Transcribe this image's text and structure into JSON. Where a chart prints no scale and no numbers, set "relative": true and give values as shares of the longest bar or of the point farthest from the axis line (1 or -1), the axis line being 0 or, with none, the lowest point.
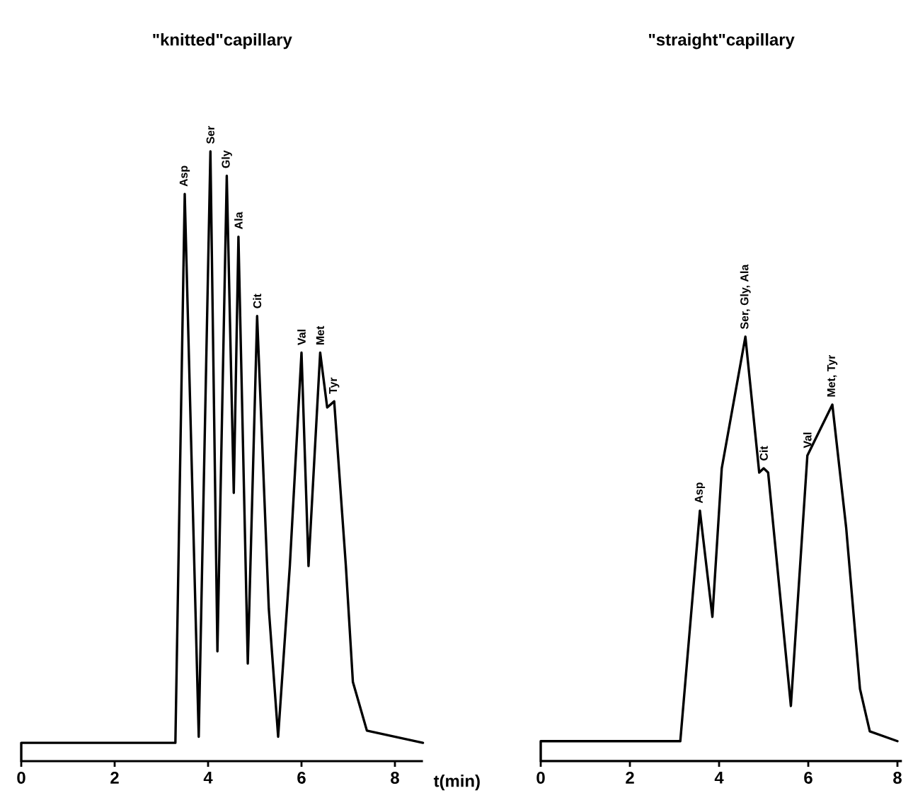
{
  "chart_data": [
    {
      "type": "line",
      "title": "\"knitted\"capillary",
      "xlabel": "t(min)",
      "relative": true,
      "color": "#000000",
      "xlim": [
        0,
        8.6
      ],
      "xticks": [
        0,
        2,
        4,
        6,
        8
      ],
      "x": [
        0,
        0,
        3.3,
        3.5,
        3.8,
        4.05,
        4.2,
        4.4,
        4.55,
        4.65,
        4.85,
        5.05,
        5.3,
        5.5,
        5.75,
        6.0,
        6.15,
        6.4,
        6.55,
        6.7,
        6.95,
        7.1,
        7.4,
        8.6
      ],
      "values": [
        0,
        0.03,
        0.03,
        0.93,
        0.04,
        1.0,
        0.18,
        0.96,
        0.44,
        0.86,
        0.16,
        0.73,
        0.25,
        0.04,
        0.32,
        0.67,
        0.32,
        0.67,
        0.58,
        0.59,
        0.32,
        0.13,
        0.05,
        0.03
      ],
      "annotations": [
        {
          "text": "Asp",
          "x": 3.5,
          "y": 0.93
        },
        {
          "text": "Ser",
          "x": 4.05,
          "y": 1.0
        },
        {
          "text": "Gly",
          "x": 4.4,
          "y": 0.96
        },
        {
          "text": "Ala",
          "x": 4.65,
          "y": 0.86
        },
        {
          "text": "Cit",
          "x": 5.05,
          "y": 0.73
        },
        {
          "text": "Val",
          "x": 6.0,
          "y": 0.67
        },
        {
          "text": "Met",
          "x": 6.4,
          "y": 0.67
        },
        {
          "text": "Tyr",
          "x": 6.7,
          "y": 0.59
        }
      ]
    },
    {
      "type": "line",
      "title": "\"straight\"capillary",
      "relative": true,
      "color": "#000000",
      "xlim": [
        0,
        8.1
      ],
      "xticks": [
        0,
        2,
        4,
        6,
        8
      ],
      "x": [
        0,
        0,
        3.13,
        3.57,
        3.85,
        4.06,
        4.59,
        4.9,
        5.0,
        5.1,
        5.61,
        5.98,
        6.54,
        6.85,
        7.16,
        7.38,
        8.0
      ],
      "values": [
        0,
        0.047,
        0.047,
        0.59,
        0.34,
        0.69,
        1.0,
        0.68,
        0.69,
        0.68,
        0.13,
        0.72,
        0.84,
        0.55,
        0.17,
        0.07,
        0.047
      ],
      "annotations": [
        {
          "text": "Asp",
          "x": 3.57,
          "y": 0.59
        },
        {
          "text": "Ser, Gly, Ala",
          "x": 4.59,
          "y": 1.0
        },
        {
          "text": "Cit",
          "x": 5.0,
          "y": 0.69
        },
        {
          "text": "Val",
          "x": 5.98,
          "y": 0.72
        },
        {
          "text": "Met, Tyr",
          "x": 6.54,
          "y": 0.84
        }
      ]
    }
  ]
}
